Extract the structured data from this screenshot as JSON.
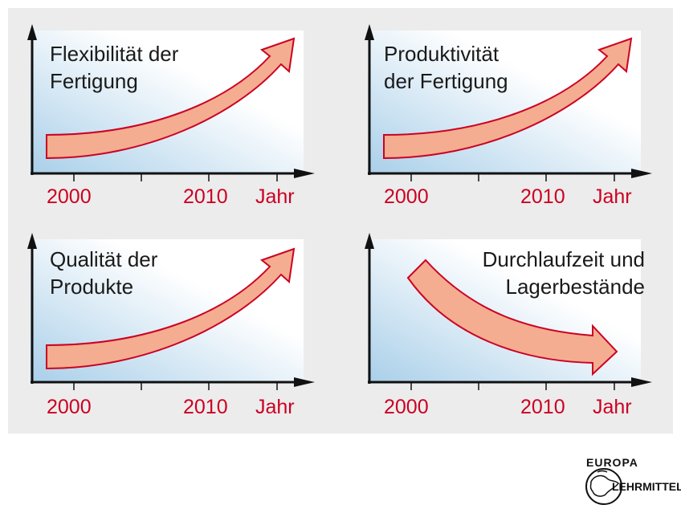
{
  "colors": {
    "panel_bg": "#ececec",
    "plot_bg_dark": "#a9cfe9",
    "plot_bg_light": "#ffffff",
    "axis": "#111111",
    "arrow_fill": "#f4ad90",
    "arrow_stroke": "#cc0022",
    "label": "#cc0022"
  },
  "panels": [
    {
      "title": "Flexibilität der\nFertigung",
      "trend": "up",
      "ticks": [
        "2000",
        "2010",
        "Jahr"
      ]
    },
    {
      "title": "Produktivität\nder Fertigung",
      "trend": "up",
      "ticks": [
        "2000",
        "2010",
        "Jahr"
      ]
    },
    {
      "title": "Qualität der\nProdukte",
      "trend": "up",
      "ticks": [
        "2000",
        "2010",
        "Jahr"
      ]
    },
    {
      "title": "Durchlaufzeit und\nLagerbestände",
      "trend": "down",
      "ticks": [
        "2000",
        "2010",
        "Jahr"
      ]
    }
  ],
  "logo": {
    "text_top": "EUROPA",
    "text_bottom": "LEHRMITTEL"
  }
}
